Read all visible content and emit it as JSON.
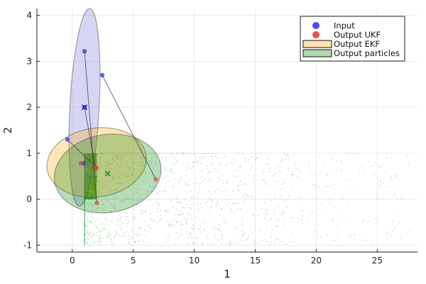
{
  "chart_data": {
    "type": "scatter",
    "xlabel": "1",
    "ylabel": "2",
    "xlim": [
      -2.9,
      28.3
    ],
    "ylim": [
      -1.15,
      4.15
    ],
    "x_ticks": [
      0,
      5,
      10,
      15,
      20,
      25
    ],
    "y_ticks": [
      -1,
      0,
      1,
      2,
      3,
      4
    ],
    "x_tick_labels": [
      "0",
      "5",
      "10",
      "15",
      "20",
      "25"
    ],
    "y_tick_labels": [
      "-1",
      "0",
      "1",
      "2",
      "3",
      "4"
    ],
    "grid": true,
    "legend_position": "top-right",
    "legend": [
      {
        "label": "Input",
        "kind": "marker",
        "color": "#4444ee"
      },
      {
        "label": "Output UKF",
        "kind": "marker",
        "color": "#ee4444"
      },
      {
        "label": "Output EKF",
        "kind": "patch",
        "color": "#ffa500"
      },
      {
        "label": "Output particles",
        "kind": "patch",
        "color": "#008000"
      }
    ],
    "input_points": [
      {
        "x": 1.0,
        "y": 3.22
      },
      {
        "x": 2.45,
        "y": 2.7
      },
      {
        "x": 1.0,
        "y": 2.0
      },
      {
        "x": -0.4,
        "y": 1.3
      },
      {
        "x": 0.95,
        "y": 0.78
      }
    ],
    "input_mean": {
      "x": 1.0,
      "y": 2.0
    },
    "ukf_points": [
      {
        "x": 2.0,
        "y": -0.08
      },
      {
        "x": 6.85,
        "y": 0.43
      },
      {
        "x": 1.9,
        "y": 0.68
      },
      {
        "x": 2.0,
        "y": 0.68
      },
      {
        "x": 0.7,
        "y": 0.78
      }
    ],
    "ukf_mean": {
      "x": 2.9,
      "y": 0.56
    },
    "input_ellipse": {
      "cx": 1.0,
      "cy": 2.0,
      "rx": 1.2,
      "ry": 2.15,
      "angle_deg": 3,
      "color": "#6a6ad8"
    },
    "ekf_ellipse": {
      "cx": 2.0,
      "cy": 0.8,
      "rx": 4.1,
      "ry": 0.75,
      "angle_deg": -8,
      "color": "#ffa500"
    },
    "ukf_ellipse": {
      "cx": 2.9,
      "cy": 0.56,
      "rx": 4.4,
      "ry": 0.85,
      "angle_deg": -9,
      "color": "#008000"
    },
    "particles": {
      "color": "#008000",
      "x_min": 1.0,
      "y_min": -1.0,
      "y_max": 1.0,
      "x_max": 27.7,
      "dense_corner": {
        "x": [
          1.0,
          2.0
        ],
        "y": [
          0.0,
          1.0
        ]
      },
      "count": 1500
    }
  }
}
